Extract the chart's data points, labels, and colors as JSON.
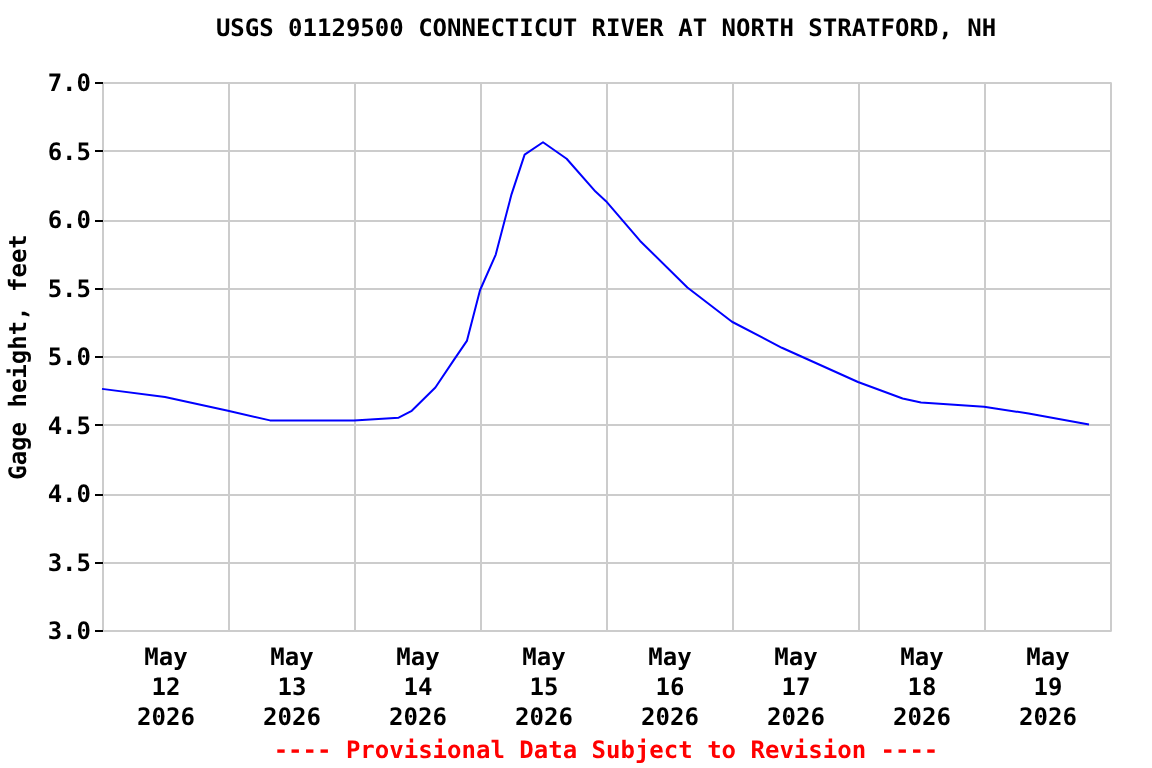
{
  "chart_data": {
    "type": "line",
    "title": "USGS 01129500 CONNECTICUT RIVER AT NORTH STRATFORD, NH",
    "ylabel": "Gage height, feet",
    "annotations": [
      "---- Provisional Data Subject to Revision ----"
    ],
    "x": [
      "2026-05-12T00:00",
      "2026-05-12T12:00",
      "2026-05-13T00:00",
      "2026-05-13T08:00",
      "2026-05-14T00:00",
      "2026-05-14T08:30",
      "2026-05-14T11:00",
      "2026-05-14T15:30",
      "2026-05-14T19:00",
      "2026-05-14T21:30",
      "2026-05-15T00:00",
      "2026-05-15T03:00",
      "2026-05-15T06:00",
      "2026-05-15T08:30",
      "2026-05-15T12:00",
      "2026-05-15T16:30",
      "2026-05-15T22:00",
      "2026-05-16T00:00",
      "2026-05-16T06:30",
      "2026-05-16T15:30",
      "2026-05-17T00:00",
      "2026-05-17T09:30",
      "2026-05-18T00:00",
      "2026-05-18T08:30",
      "2026-05-18T12:00",
      "2026-05-19T00:00",
      "2026-05-19T08:30",
      "2026-05-19T20:00"
    ],
    "series": [
      {
        "color": "#0000ff",
        "values": [
          4.76,
          4.7,
          4.6,
          4.53,
          4.53,
          4.55,
          4.6,
          4.77,
          4.97,
          5.11,
          5.48,
          5.74,
          6.18,
          6.47,
          6.56,
          6.44,
          6.2,
          6.13,
          5.84,
          5.5,
          5.25,
          5.06,
          4.81,
          4.69,
          4.66,
          4.63,
          4.58,
          4.5
        ]
      }
    ],
    "xlim": [
      "2026-05-12T00:00",
      "2026-05-20T00:00"
    ],
    "xticks": [
      {
        "value": "2026-05-12T00:00",
        "label": null
      },
      {
        "value": "2026-05-12T12:00",
        "label": "May 12 2026"
      },
      {
        "value": "2026-05-13T00:00",
        "label": null
      },
      {
        "value": "2026-05-13T12:00",
        "label": "May 13 2026"
      },
      {
        "value": "2026-05-14T00:00",
        "label": null
      },
      {
        "value": "2026-05-14T12:00",
        "label": "May 14 2026"
      },
      {
        "value": "2026-05-15T00:00",
        "label": null
      },
      {
        "value": "2026-05-15T12:00",
        "label": "May 15 2026"
      },
      {
        "value": "2026-05-16T00:00",
        "label": null
      },
      {
        "value": "2026-05-16T12:00",
        "label": "May 16 2026"
      },
      {
        "value": "2026-05-17T00:00",
        "label": null
      },
      {
        "value": "2026-05-17T12:00",
        "label": "May 17 2026"
      },
      {
        "value": "2026-05-18T00:00",
        "label": null
      },
      {
        "value": "2026-05-18T12:00",
        "label": "May 18 2026"
      },
      {
        "value": "2026-05-19T00:00",
        "label": null
      },
      {
        "value": "2026-05-19T12:00",
        "label": "May 19 2026"
      },
      {
        "value": "2026-05-20T00:00",
        "label": null
      }
    ],
    "ylim": [
      3.0,
      7.0
    ],
    "yticks": [
      {
        "value": 3.0,
        "label": "3.0"
      },
      {
        "value": 3.5,
        "label": "3.5"
      },
      {
        "value": 4.0,
        "label": "4.0"
      },
      {
        "value": 4.5,
        "label": "4.5"
      },
      {
        "value": 5.0,
        "label": "5.0"
      },
      {
        "value": 5.5,
        "label": "5.5"
      },
      {
        "value": 6.0,
        "label": "6.0"
      },
      {
        "value": 6.5,
        "label": "6.5"
      },
      {
        "value": 7.0,
        "label": "7.0"
      }
    ],
    "grid": true
  }
}
